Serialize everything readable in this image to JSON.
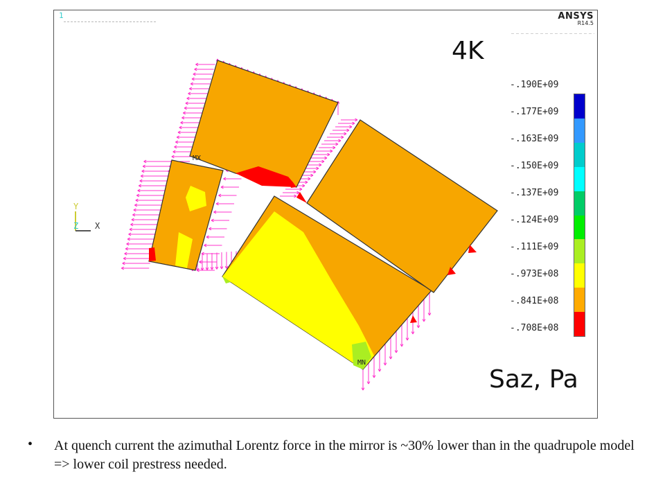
{
  "figure": {
    "frame_number": "1",
    "logo": {
      "name": "ANSYS",
      "version": "R14.5"
    },
    "temperature_label": "4K",
    "quantity_label": "Saz, Pa",
    "axes": {
      "y": "Y",
      "z": "Z",
      "x": "X"
    },
    "markers": {
      "max": "MX",
      "min": "MN"
    },
    "legend": {
      "labels": [
        "-.190E+09",
        "-.177E+09",
        "-.163E+09",
        "-.150E+09",
        "-.137E+09",
        "-.124E+09",
        "-.111E+09",
        "-.973E+08",
        "-.841E+08",
        "-.708E+08"
      ],
      "colors": [
        "#0000cc",
        "#3399ff",
        "#00cccc",
        "#00ffff",
        "#00cc66",
        "#00ee00",
        "#aaee22",
        "#ffff00",
        "#ffaa00",
        "#ff0000"
      ]
    },
    "colors": {
      "field_base": "#f7a600",
      "field_low": "#ffff00",
      "field_hot": "#ff0000",
      "field_green": "#aaee22",
      "force_arrows": "#ff33cc"
    }
  },
  "caption": {
    "bullet": "•",
    "text": "At quench current the azimuthal Lorentz force in the mirror is ~30% lower than in the quadrupole model => lower coil prestress needed."
  }
}
